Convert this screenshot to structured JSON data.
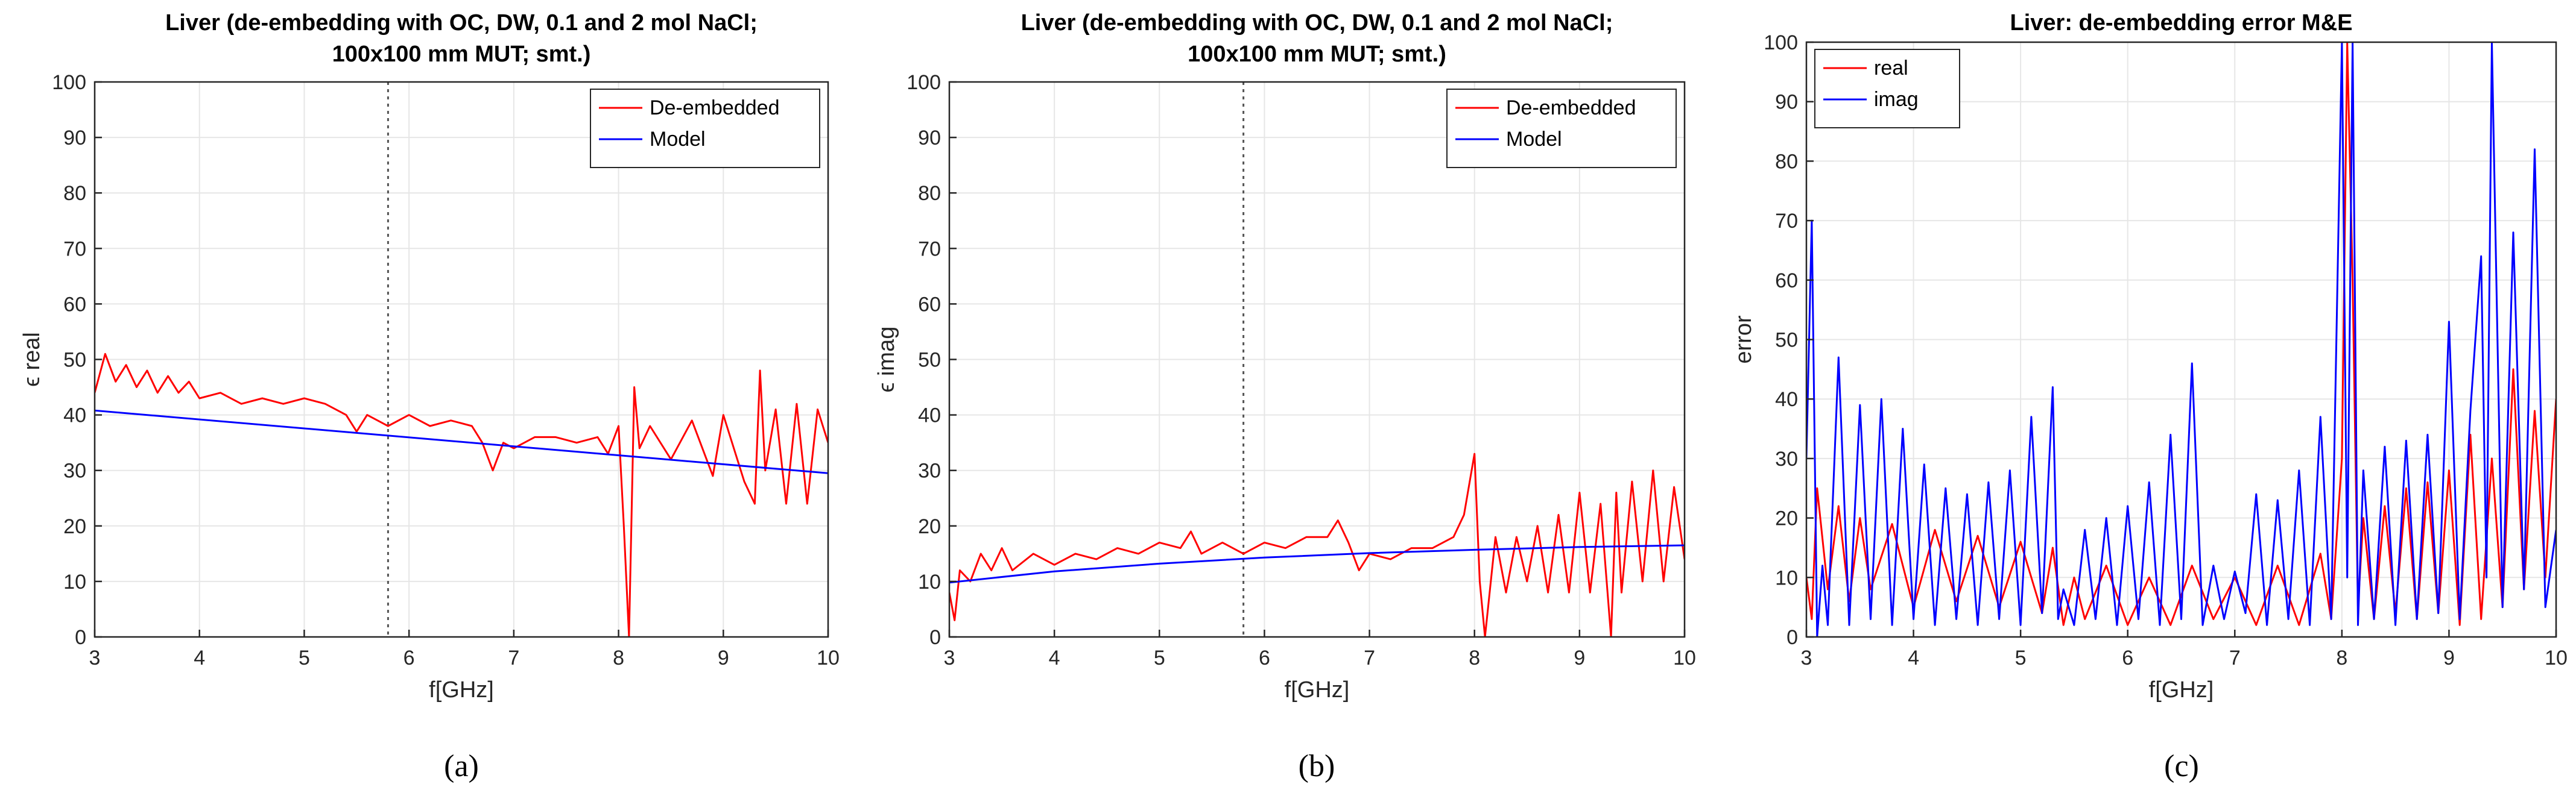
{
  "colors": {
    "deembedded": "#ff0000",
    "model": "#0000ff",
    "real": "#ff0000",
    "imag": "#0000ff",
    "grid": "#e6e6e6",
    "axis": "#262626",
    "marker_line": "#555555"
  },
  "chart_data": [
    {
      "type": "line",
      "title": "Liver (de-embedding with OC, DW, 0.1 and 2 mol NaCl;",
      "title_line2": "100x100 mm MUT; smt.)",
      "xlabel": "f[GHz]",
      "ylabel": "ϵ real",
      "caption": "(a)",
      "xlim": [
        3,
        10
      ],
      "ylim": [
        0,
        100
      ],
      "xticks": [
        "3",
        "4",
        "5",
        "6",
        "7",
        "8",
        "9",
        "10"
      ],
      "yticks": [
        "0",
        "10",
        "20",
        "30",
        "40",
        "50",
        "60",
        "70",
        "80",
        "90",
        "100"
      ],
      "grid": true,
      "legend_position": "top-right",
      "vline_x": 5.8,
      "series": [
        {
          "name": "De-embedded",
          "x": [
            3.0,
            3.1,
            3.2,
            3.3,
            3.4,
            3.5,
            3.6,
            3.7,
            3.8,
            3.9,
            4.0,
            4.2,
            4.4,
            4.6,
            4.8,
            5.0,
            5.2,
            5.4,
            5.5,
            5.6,
            5.8,
            6.0,
            6.2,
            6.4,
            6.6,
            6.7,
            6.8,
            6.9,
            7.0,
            7.2,
            7.4,
            7.6,
            7.8,
            7.9,
            8.0,
            8.05,
            8.1,
            8.15,
            8.2,
            8.3,
            8.5,
            8.7,
            8.9,
            9.0,
            9.2,
            9.3,
            9.35,
            9.4,
            9.5,
            9.6,
            9.7,
            9.8,
            9.9,
            10.0
          ],
          "y": [
            44,
            51,
            46,
            49,
            45,
            48,
            44,
            47,
            44,
            46,
            43,
            44,
            42,
            43,
            42,
            43,
            42,
            40,
            37,
            40,
            38,
            40,
            38,
            39,
            38,
            35,
            30,
            35,
            34,
            36,
            36,
            35,
            36,
            33,
            38,
            20,
            0,
            45,
            34,
            38,
            32,
            39,
            29,
            40,
            28,
            24,
            48,
            30,
            41,
            24,
            42,
            24,
            41,
            35
          ]
        },
        {
          "name": "Model",
          "x": [
            3,
            10
          ],
          "y": [
            40.8,
            29.5
          ]
        }
      ]
    },
    {
      "type": "line",
      "title": "Liver (de-embedding with OC, DW, 0.1 and 2 mol NaCl;",
      "title_line2": "100x100 mm MUT; smt.)",
      "xlabel": "f[GHz]",
      "ylabel": "ϵ imag",
      "caption": "(b)",
      "xlim": [
        3,
        10
      ],
      "ylim": [
        0,
        100
      ],
      "xticks": [
        "3",
        "4",
        "5",
        "6",
        "7",
        "8",
        "9",
        "10"
      ],
      "yticks": [
        "0",
        "10",
        "20",
        "30",
        "40",
        "50",
        "60",
        "70",
        "80",
        "90",
        "100"
      ],
      "grid": true,
      "legend_position": "top-right",
      "vline_x": 5.8,
      "series": [
        {
          "name": "De-embedded",
          "x": [
            3.0,
            3.05,
            3.1,
            3.2,
            3.3,
            3.4,
            3.5,
            3.6,
            3.8,
            4.0,
            4.2,
            4.4,
            4.6,
            4.8,
            5.0,
            5.2,
            5.3,
            5.4,
            5.6,
            5.8,
            6.0,
            6.2,
            6.4,
            6.6,
            6.7,
            6.8,
            6.9,
            7.0,
            7.2,
            7.4,
            7.6,
            7.8,
            7.9,
            8.0,
            8.05,
            8.1,
            8.2,
            8.3,
            8.4,
            8.5,
            8.6,
            8.7,
            8.8,
            8.9,
            9.0,
            9.1,
            9.2,
            9.3,
            9.35,
            9.4,
            9.5,
            9.6,
            9.7,
            9.8,
            9.9,
            10.0
          ],
          "y": [
            8,
            3,
            12,
            10,
            15,
            12,
            16,
            12,
            15,
            13,
            15,
            14,
            16,
            15,
            17,
            16,
            19,
            15,
            17,
            15,
            17,
            16,
            18,
            18,
            21,
            17,
            12,
            15,
            14,
            16,
            16,
            18,
            22,
            33,
            10,
            0,
            18,
            8,
            18,
            10,
            20,
            8,
            22,
            8,
            26,
            8,
            24,
            0,
            26,
            8,
            28,
            10,
            30,
            10,
            27,
            14
          ]
        },
        {
          "name": "Model",
          "x": [
            3,
            4,
            5,
            6,
            7,
            8,
            9,
            10
          ],
          "y": [
            9.8,
            11.8,
            13.2,
            14.3,
            15.1,
            15.7,
            16.2,
            16.5
          ]
        }
      ]
    },
    {
      "type": "line",
      "title": "Liver: de-embedding error M&E",
      "xlabel": "f[GHz]",
      "ylabel": "error",
      "caption": "(c)",
      "xlim": [
        3,
        10
      ],
      "ylim": [
        0,
        100
      ],
      "xticks": [
        "3",
        "4",
        "5",
        "6",
        "7",
        "8",
        "9",
        "10"
      ],
      "yticks": [
        "0",
        "10",
        "20",
        "30",
        "40",
        "50",
        "60",
        "70",
        "80",
        "90",
        "100"
      ],
      "grid": true,
      "legend_position": "top-left",
      "series": [
        {
          "name": "real",
          "x": [
            3.0,
            3.05,
            3.1,
            3.2,
            3.3,
            3.4,
            3.5,
            3.6,
            3.8,
            4.0,
            4.2,
            4.4,
            4.6,
            4.8,
            5.0,
            5.2,
            5.3,
            5.4,
            5.5,
            5.6,
            5.8,
            6.0,
            6.2,
            6.4,
            6.6,
            6.8,
            7.0,
            7.2,
            7.4,
            7.6,
            7.8,
            7.9,
            8.0,
            8.05,
            8.1,
            8.15,
            8.2,
            8.3,
            8.4,
            8.5,
            8.6,
            8.7,
            8.8,
            8.9,
            9.0,
            9.1,
            9.2,
            9.3,
            9.4,
            9.5,
            9.6,
            9.7,
            9.8,
            9.9,
            10.0
          ],
          "y": [
            10,
            3,
            25,
            8,
            22,
            6,
            20,
            8,
            19,
            5,
            18,
            6,
            17,
            5,
            16,
            4,
            15,
            2,
            10,
            3,
            12,
            2,
            10,
            2,
            12,
            3,
            10,
            2,
            12,
            2,
            14,
            3,
            30,
            100,
            60,
            5,
            20,
            3,
            22,
            4,
            25,
            3,
            26,
            4,
            28,
            2,
            34,
            3,
            30,
            5,
            45,
            8,
            38,
            10,
            40
          ]
        },
        {
          "name": "imag",
          "x": [
            3.0,
            3.05,
            3.1,
            3.15,
            3.2,
            3.3,
            3.4,
            3.5,
            3.6,
            3.7,
            3.8,
            3.9,
            4.0,
            4.1,
            4.2,
            4.3,
            4.4,
            4.5,
            4.6,
            4.7,
            4.8,
            4.9,
            5.0,
            5.1,
            5.2,
            5.3,
            5.35,
            5.4,
            5.5,
            5.6,
            5.7,
            5.8,
            5.9,
            6.0,
            6.1,
            6.2,
            6.3,
            6.4,
            6.5,
            6.6,
            6.7,
            6.8,
            6.9,
            7.0,
            7.1,
            7.2,
            7.3,
            7.4,
            7.5,
            7.6,
            7.7,
            7.8,
            7.9,
            8.0,
            8.05,
            8.1,
            8.15,
            8.2,
            8.3,
            8.4,
            8.5,
            8.6,
            8.7,
            8.8,
            8.9,
            9.0,
            9.1,
            9.2,
            9.3,
            9.35,
            9.4,
            9.5,
            9.6,
            9.7,
            9.8,
            9.9,
            10.0
          ],
          "y": [
            30,
            70,
            0,
            12,
            2,
            47,
            2,
            39,
            3,
            40,
            2,
            35,
            3,
            29,
            2,
            25,
            3,
            24,
            2,
            26,
            3,
            28,
            2,
            37,
            4,
            42,
            3,
            8,
            2,
            18,
            3,
            20,
            2,
            22,
            3,
            26,
            2,
            34,
            3,
            46,
            2,
            12,
            3,
            11,
            4,
            24,
            2,
            23,
            3,
            28,
            2,
            37,
            3,
            100,
            10,
            100,
            2,
            28,
            3,
            32,
            2,
            33,
            3,
            34,
            4,
            53,
            3,
            38,
            64,
            10,
            100,
            5,
            68,
            8,
            82,
            5,
            18
          ]
        }
      ]
    }
  ]
}
